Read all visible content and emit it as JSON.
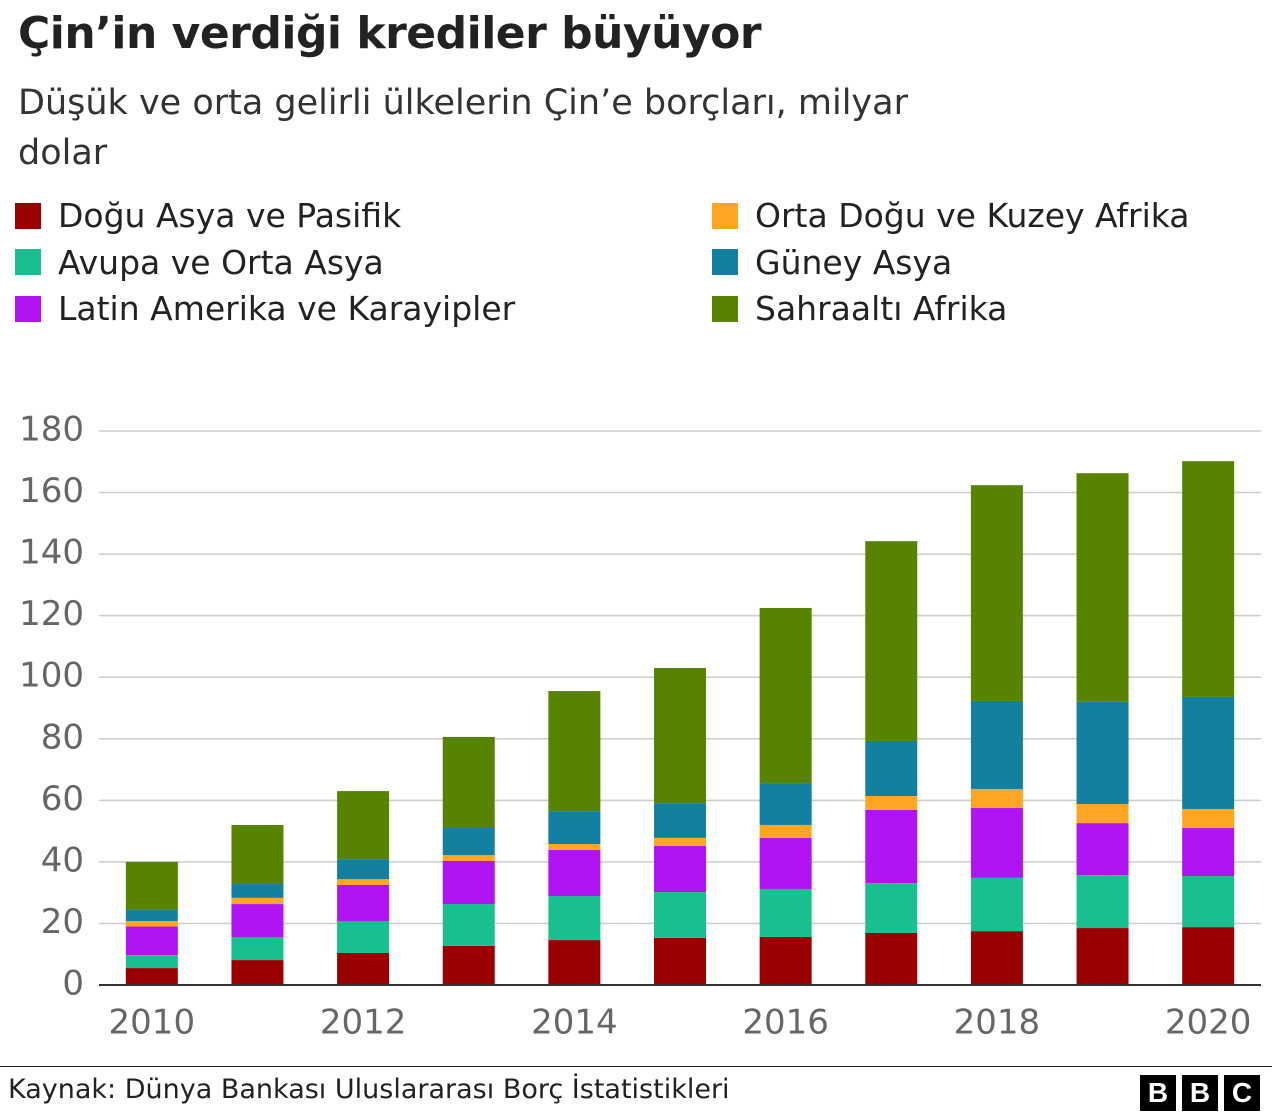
{
  "chart_data": {
    "type": "stacked-bar",
    "title": "Çin’in verdiği krediler büyüyor",
    "subtitle": "Düşük ve orta gelirli ülkelerin Çin’e borçları, milyar dolar",
    "categories": [
      "2010",
      null,
      "2012",
      null,
      "2014",
      null,
      "2016",
      null,
      "2018",
      null,
      "2020"
    ],
    "series": [
      {
        "name": "Doğu Asya ve Pasifik",
        "color": "#990000",
        "values": [
          5.5,
          8.1,
          10.4,
          12.7,
          14.6,
          15.3,
          15.6,
          16.9,
          17.5,
          18.5,
          18.8
        ]
      },
      {
        "name": "Avupa ve Orta Asya",
        "color": "#1abf8f",
        "values": [
          4.2,
          7.5,
          10.4,
          13.6,
          14.3,
          14.9,
          15.6,
          16.2,
          17.3,
          17.2,
          16.6
        ]
      },
      {
        "name": "Latin Amerika ve Karayipler",
        "color": "#b014f2",
        "values": [
          9.3,
          10.7,
          11.7,
          14.0,
          15.0,
          15.0,
          16.6,
          23.8,
          22.7,
          16.9,
          15.6
        ]
      },
      {
        "name": "Orta Doğu ve Kuzey Afrika",
        "color": "#ffa524",
        "values": [
          1.8,
          2.0,
          1.9,
          1.9,
          1.9,
          2.6,
          4.2,
          4.5,
          6.2,
          6.2,
          6.2
        ]
      },
      {
        "name": "Güney Asya",
        "color": "#1380a1",
        "values": [
          3.7,
          4.5,
          6.5,
          8.8,
          10.7,
          11.3,
          13.6,
          17.9,
          28.6,
          33.2,
          36.4
        ]
      },
      {
        "name": "Sahraaltı Afrika",
        "color": "#588300",
        "values": [
          15.5,
          19.2,
          22.1,
          29.6,
          39.0,
          43.9,
          56.9,
          64.9,
          70.1,
          74.3,
          76.6
        ]
      }
    ],
    "ylim": [
      0,
      180
    ],
    "yticks": [
      0,
      20,
      40,
      60,
      80,
      100,
      120,
      140,
      160,
      180
    ],
    "grid": true,
    "source": "Kaynak: Dünya Bankası Uluslararası Borç İstatistikleri",
    "logo": [
      "B",
      "B",
      "C"
    ]
  }
}
